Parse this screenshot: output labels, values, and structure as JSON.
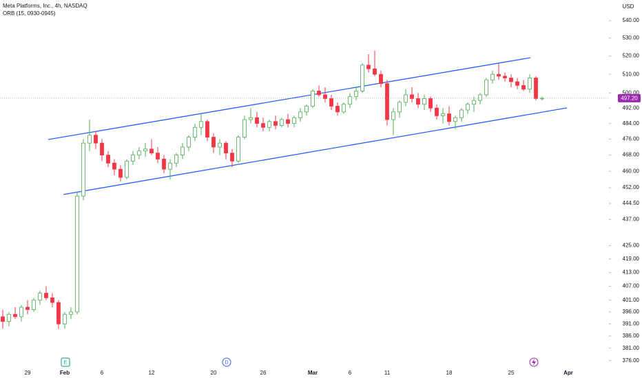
{
  "chart_data": {
    "type": "candlestick",
    "title": "Meta Platforms, Inc., 4h, NASDAQ",
    "subtitle": "ORB (15, 0930-0945)",
    "currency": "USD",
    "log_scale": true,
    "up_color": "#4caf50",
    "down_color": "#f23645",
    "categories": [
      null,
      null,
      null,
      null,
      "29",
      null,
      null,
      null,
      null,
      null,
      "Feb",
      null,
      null,
      null,
      null,
      null,
      "6",
      null,
      null,
      null,
      null,
      null,
      null,
      null,
      "12",
      null,
      null,
      null,
      null,
      null,
      null,
      null,
      null,
      null,
      "20",
      null,
      null,
      null,
      null,
      null,
      null,
      null,
      "26",
      null,
      null,
      null,
      null,
      null,
      null,
      null,
      "Mar",
      null,
      null,
      null,
      null,
      null,
      "6",
      null,
      null,
      null,
      null,
      null,
      "11",
      null,
      null,
      null,
      null,
      null,
      null,
      null,
      null,
      null,
      "18",
      null,
      null,
      null,
      null,
      null,
      null,
      null,
      null,
      null,
      "25",
      null,
      null,
      null,
      null,
      null
    ],
    "extra_x_label": "Apr",
    "open": [
      394,
      392,
      395,
      394,
      398,
      397,
      401,
      404,
      402,
      400,
      391,
      395,
      396,
      448,
      474,
      478,
      474,
      468,
      464,
      461,
      457,
      465,
      468,
      470,
      471,
      469,
      466,
      461,
      464,
      468,
      472,
      477,
      482,
      485,
      477,
      472,
      474,
      469,
      465,
      477,
      486,
      487,
      484,
      482,
      485,
      483,
      486,
      484,
      487,
      490,
      493,
      501,
      499,
      497,
      493,
      490,
      494,
      498,
      501,
      515,
      513,
      510,
      505,
      486,
      490,
      495,
      499,
      497,
      494,
      497,
      492,
      488,
      489,
      485,
      487,
      491,
      494,
      496,
      499,
      507,
      510,
      509,
      508,
      506,
      504,
      502,
      508,
      497
    ],
    "high": [
      397,
      396,
      398,
      399,
      401,
      402,
      405,
      407,
      404,
      401,
      396,
      398,
      450,
      476,
      486,
      480,
      476,
      470,
      466,
      463,
      466,
      470,
      472,
      474,
      476,
      472,
      468,
      466,
      469,
      474,
      478,
      484,
      489,
      486,
      479,
      476,
      475,
      471,
      478,
      488,
      492,
      490,
      487,
      486,
      488,
      487,
      489,
      488,
      492,
      494,
      502,
      504,
      503,
      499,
      495,
      495,
      500,
      503,
      516,
      521,
      523,
      512,
      507,
      492,
      496,
      502,
      503,
      500,
      499,
      498,
      494,
      492,
      493,
      488,
      492,
      495,
      498,
      500,
      508,
      512,
      516,
      511,
      510,
      508,
      507,
      510,
      509,
      498
    ],
    "low": [
      389,
      390,
      393,
      392,
      395,
      396,
      399,
      401,
      398,
      389,
      389,
      393,
      395,
      446,
      470,
      471,
      465,
      462,
      458,
      455,
      456,
      463,
      466,
      467,
      468,
      464,
      459,
      456,
      462,
      466,
      470,
      475,
      478,
      475,
      469,
      468,
      466,
      462,
      464,
      476,
      484,
      482,
      480,
      480,
      481,
      482,
      482,
      482,
      485,
      488,
      492,
      498,
      495,
      491,
      488,
      489,
      492,
      496,
      500,
      511,
      509,
      503,
      483,
      478,
      487,
      493,
      495,
      492,
      491,
      490,
      486,
      484,
      483,
      481,
      485,
      489,
      490,
      494,
      498,
      505,
      507,
      506,
      503,
      502,
      501,
      500,
      496,
      496
    ],
    "close": [
      392,
      395,
      394,
      398,
      397,
      401,
      404,
      402,
      400,
      391,
      395,
      396,
      448,
      474,
      478,
      474,
      468,
      464,
      461,
      457,
      465,
      468,
      470,
      471,
      469,
      466,
      461,
      464,
      468,
      472,
      477,
      482,
      485,
      477,
      472,
      474,
      469,
      465,
      477,
      486,
      487,
      484,
      482,
      485,
      483,
      486,
      484,
      487,
      490,
      493,
      501,
      499,
      497,
      493,
      490,
      494,
      498,
      501,
      515,
      513,
      510,
      505,
      486,
      490,
      495,
      499,
      497,
      494,
      497,
      492,
      488,
      489,
      485,
      487,
      491,
      494,
      496,
      499,
      507,
      510,
      509,
      508,
      506,
      504,
      502,
      508,
      497,
      497.2
    ],
    "last_price": {
      "value": 497.2,
      "label": "497.20"
    },
    "ylim": [
      374,
      552
    ],
    "yticks": [
      {
        "value": 376,
        "label": "376.00"
      },
      {
        "value": 381,
        "label": "381.00"
      },
      {
        "value": 386,
        "label": "386.00"
      },
      {
        "value": 391,
        "label": "391.00"
      },
      {
        "value": 396,
        "label": "396.00"
      },
      {
        "value": 401,
        "label": "401.00"
      },
      {
        "value": 407,
        "label": "407.00"
      },
      {
        "value": 413,
        "label": "413.00"
      },
      {
        "value": 419,
        "label": "419.00"
      },
      {
        "value": 425,
        "label": "425.00"
      },
      {
        "value": 437,
        "label": "437.00"
      },
      {
        "value": 444.5,
        "label": "444.50"
      },
      {
        "value": 452,
        "label": "452.00"
      },
      {
        "value": 460,
        "label": "460.00"
      },
      {
        "value": 468,
        "label": "468.00"
      },
      {
        "value": 476,
        "label": "476.00"
      },
      {
        "value": 484,
        "label": "484.00"
      },
      {
        "value": 492,
        "label": "492.00"
      },
      {
        "value": 500,
        "label": "500.00"
      },
      {
        "value": 510,
        "label": "510.00"
      },
      {
        "value": 520,
        "label": "520.00"
      },
      {
        "value": 530,
        "label": "530.00"
      },
      {
        "value": 540,
        "label": "540.00"
      }
    ],
    "events": [
      "E",
      "D"
    ]
  }
}
